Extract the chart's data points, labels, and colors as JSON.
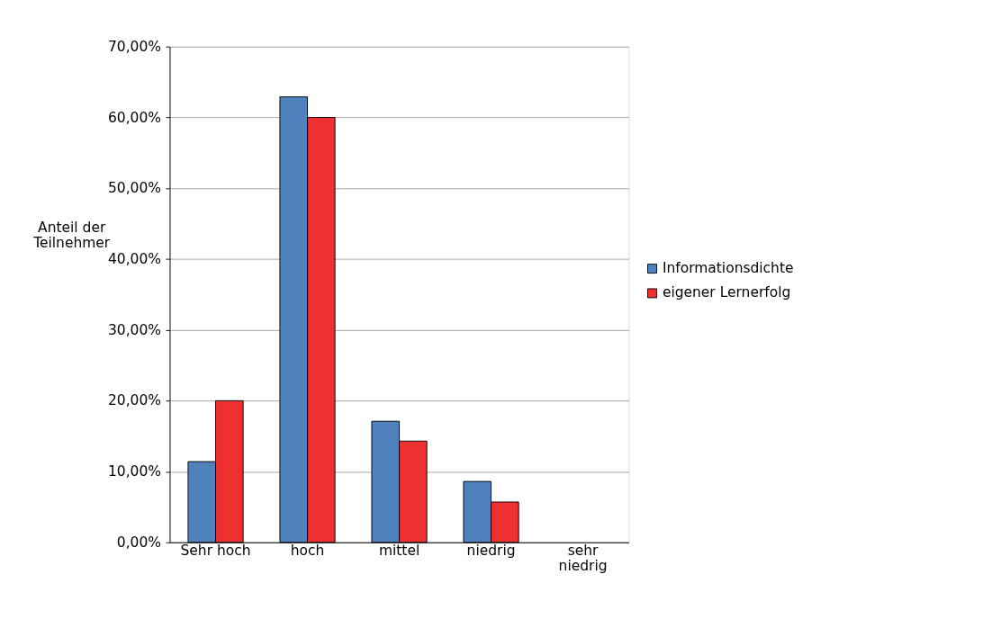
{
  "chart_data": {
    "type": "bar",
    "ylabel": "Anteil der Teilnehmer",
    "categories": [
      "Sehr hoch",
      "hoch",
      "mittel",
      "niedrig",
      "sehr niedrig"
    ],
    "series": [
      {
        "name": "Informationsdichte",
        "color": "#4f81bd",
        "values": [
          11.4,
          62.9,
          17.1,
          8.6,
          null
        ]
      },
      {
        "name": "eigener Lernerfolg",
        "color": "#ee3030",
        "values": [
          20.0,
          60.0,
          14.3,
          5.7,
          null
        ]
      }
    ],
    "ylim": [
      0,
      70
    ],
    "yticks": [
      {
        "value": 0,
        "label": "0,00%"
      },
      {
        "value": 10,
        "label": "10,00%"
      },
      {
        "value": 20,
        "label": "20,00%"
      },
      {
        "value": 30,
        "label": "30,00%"
      },
      {
        "value": 40,
        "label": "40,00%"
      },
      {
        "value": 50,
        "label": "50,00%"
      },
      {
        "value": 60,
        "label": "60,00%"
      },
      {
        "value": 70,
        "label": "70,00%"
      }
    ],
    "grid": "y",
    "legend": "right"
  }
}
